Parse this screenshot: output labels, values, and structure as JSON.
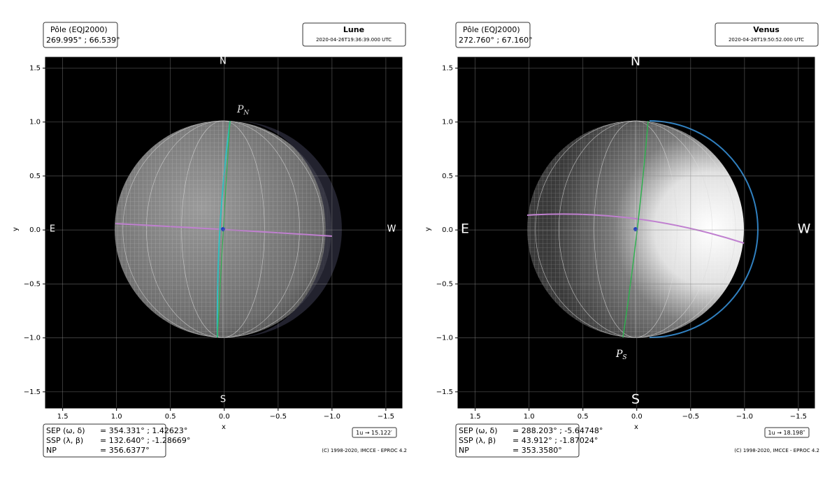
{
  "chart_data": [
    {
      "type": "globe",
      "title": "Lune",
      "subtitle": "2020-04-26T19:36:39.000 UTC",
      "pole_header": "Pôle (EQJ2000)",
      "pole_coords": "269.995° ; 66.539°",
      "directions": {
        "N": "N",
        "S": "S",
        "E": "E",
        "W": "W"
      },
      "pole_label": "P",
      "pole_label_sub": "N",
      "xlabel": "x",
      "ylabel": "y",
      "xlim": [
        1.66,
        -1.65
      ],
      "ylim": [
        -1.65,
        1.6
      ],
      "xticks": [
        1.5,
        {
          "value": 1,
          "label": "1.0"
        },
        0.5,
        {
          "value": 0,
          "label": "0.0"
        },
        {
          "value": -0.5,
          "label": "−0.5"
        },
        {
          "value": -1,
          "label": "−1.0"
        },
        {
          "value": -1.5,
          "label": "−1.5"
        }
      ],
      "yticks": [
        1.5,
        {
          "value": 1,
          "label": "1.0"
        },
        0.5,
        {
          "value": 0,
          "label": "0.0"
        },
        {
          "value": -0.5,
          "label": "−0.5"
        },
        {
          "value": -1,
          "label": "−1.0"
        },
        {
          "value": -1.5,
          "label": "−1.5"
        }
      ],
      "info": [
        [
          "SEP (ω, δ)",
          "= 354.331° ; 1.42623°"
        ],
        [
          "SSP (λ, β)",
          "= 132.640° ; -1.28669°"
        ],
        [
          "NP",
          "= 356.6377°"
        ]
      ],
      "scale": "1u → 15.122′",
      "copyright": "(C) 1998-2020, IMCCE - EPROC 4.2"
    },
    {
      "type": "globe",
      "title": "Venus",
      "subtitle": "2020-04-26T19:50:52.000 UTC",
      "pole_header": "Pôle (EQJ2000)",
      "pole_coords": "272.760° ; 67.160°",
      "directions": {
        "N": "N",
        "S": "S",
        "E": "E",
        "W": "W"
      },
      "pole_label": "P",
      "pole_label_sub": "S",
      "xlabel": "x",
      "ylabel": "y",
      "xlim": [
        1.66,
        -1.65
      ],
      "ylim": [
        -1.65,
        1.6
      ],
      "xticks": [
        1.5,
        {
          "value": 1,
          "label": "1.0"
        },
        0.5,
        {
          "value": 0,
          "label": "0.0"
        },
        {
          "value": -0.5,
          "label": "−0.5"
        },
        {
          "value": -1,
          "label": "−1.0"
        },
        {
          "value": -1.5,
          "label": "−1.5"
        }
      ],
      "yticks": [
        1.5,
        {
          "value": 1,
          "label": "1.0"
        },
        0.5,
        {
          "value": 0,
          "label": "0.0"
        },
        {
          "value": -0.5,
          "label": "−0.5"
        },
        {
          "value": -1,
          "label": "−1.0"
        },
        {
          "value": -1.5,
          "label": "−1.5"
        }
      ],
      "info": [
        [
          "SEP (ω, δ)",
          "= 288.203° ; -5.64748°"
        ],
        [
          "SSP (λ, β)",
          "= 43.912° ; -1.87024°"
        ],
        [
          "NP",
          "= 353.3580°"
        ]
      ],
      "scale": "1u → 18.198″",
      "copyright": "(C) 1998-2020, IMCCE - EPROC 4.2"
    }
  ]
}
